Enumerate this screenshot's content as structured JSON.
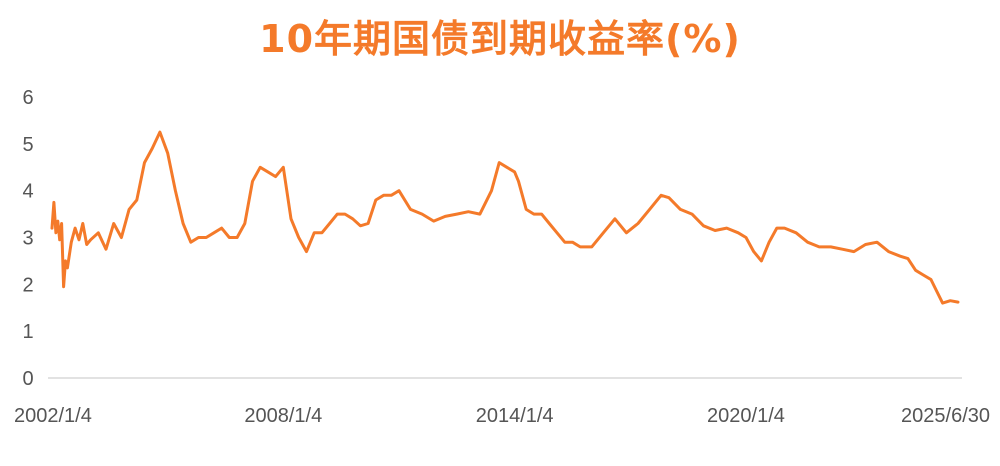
{
  "chart_data": {
    "type": "line",
    "title": "10年期国债到期收益率(%)",
    "xlabel": "",
    "ylabel": "",
    "ylim": [
      0,
      6
    ],
    "y_ticks": [
      "0",
      "1",
      "2",
      "3",
      "4",
      "5",
      "6"
    ],
    "x_tick_labels": [
      "2002/1/4",
      "2008/1/4",
      "2014/1/4",
      "2020/1/4",
      "2025/6/30"
    ],
    "x_tick_values": [
      2002.0,
      2008.0,
      2014.0,
      2020.0,
      2025.5
    ],
    "xlim": [
      2002.0,
      2025.5
    ],
    "grid": false,
    "legend": "none",
    "line_color": "#F47A2A",
    "axis_color": "#D9D9D9",
    "series": [
      {
        "x": [
          2002.0,
          2002.05,
          2002.1,
          2002.15,
          2002.2,
          2002.25,
          2002.3,
          2002.35,
          2002.4,
          2002.5,
          2002.6,
          2002.7,
          2002.8,
          2002.9,
          2003.0,
          2003.2,
          2003.4,
          2003.6,
          2003.8,
          2004.0,
          2004.2,
          2004.4,
          2004.6,
          2004.8,
          2005.0,
          2005.2,
          2005.4,
          2005.6,
          2005.8,
          2006.0,
          2006.2,
          2006.4,
          2006.6,
          2006.8,
          2007.0,
          2007.2,
          2007.4,
          2007.6,
          2007.8,
          2008.0,
          2008.2,
          2008.4,
          2008.6,
          2008.8,
          2009.0,
          2009.2,
          2009.4,
          2009.6,
          2009.8,
          2010.0,
          2010.2,
          2010.4,
          2010.6,
          2010.8,
          2011.0,
          2011.3,
          2011.6,
          2011.9,
          2012.2,
          2012.5,
          2012.8,
          2013.1,
          2013.4,
          2013.6,
          2013.8,
          2014.0,
          2014.1,
          2014.3,
          2014.5,
          2014.7,
          2014.9,
          2015.1,
          2015.3,
          2015.5,
          2015.7,
          2016.0,
          2016.3,
          2016.6,
          2016.9,
          2017.2,
          2017.5,
          2017.8,
          2018.0,
          2018.3,
          2018.6,
          2018.9,
          2019.2,
          2019.5,
          2019.8,
          2020.0,
          2020.2,
          2020.4,
          2020.6,
          2020.8,
          2021.0,
          2021.3,
          2021.6,
          2021.9,
          2022.2,
          2022.5,
          2022.8,
          2023.1,
          2023.4,
          2023.7,
          2024.0,
          2024.2,
          2024.4,
          2024.6,
          2024.8,
          2024.95,
          2025.1,
          2025.3,
          2025.5
        ],
        "y": [
          3.2,
          3.75,
          3.1,
          3.35,
          2.95,
          3.3,
          1.95,
          2.5,
          2.35,
          2.9,
          3.2,
          2.95,
          3.3,
          2.85,
          2.95,
          3.1,
          2.75,
          3.3,
          3.0,
          3.6,
          3.8,
          4.6,
          4.9,
          5.25,
          4.8,
          4.0,
          3.3,
          2.9,
          3.0,
          3.0,
          3.1,
          3.2,
          3.0,
          3.0,
          3.3,
          4.2,
          4.5,
          4.4,
          4.3,
          4.5,
          3.4,
          3.0,
          2.7,
          3.1,
          3.1,
          3.3,
          3.5,
          3.5,
          3.4,
          3.25,
          3.3,
          3.8,
          3.9,
          3.9,
          4.0,
          3.6,
          3.5,
          3.35,
          3.45,
          3.5,
          3.55,
          3.5,
          4.0,
          4.6,
          4.5,
          4.4,
          4.2,
          3.6,
          3.5,
          3.5,
          3.3,
          3.1,
          2.9,
          2.9,
          2.8,
          2.8,
          3.1,
          3.4,
          3.1,
          3.3,
          3.6,
          3.9,
          3.85,
          3.6,
          3.5,
          3.25,
          3.15,
          3.2,
          3.1,
          3.0,
          2.7,
          2.5,
          2.9,
          3.2,
          3.2,
          3.1,
          2.9,
          2.8,
          2.8,
          2.75,
          2.7,
          2.85,
          2.9,
          2.7,
          2.6,
          2.55,
          2.3,
          2.2,
          2.1,
          1.85,
          1.6,
          1.65,
          1.62
        ]
      }
    ]
  }
}
